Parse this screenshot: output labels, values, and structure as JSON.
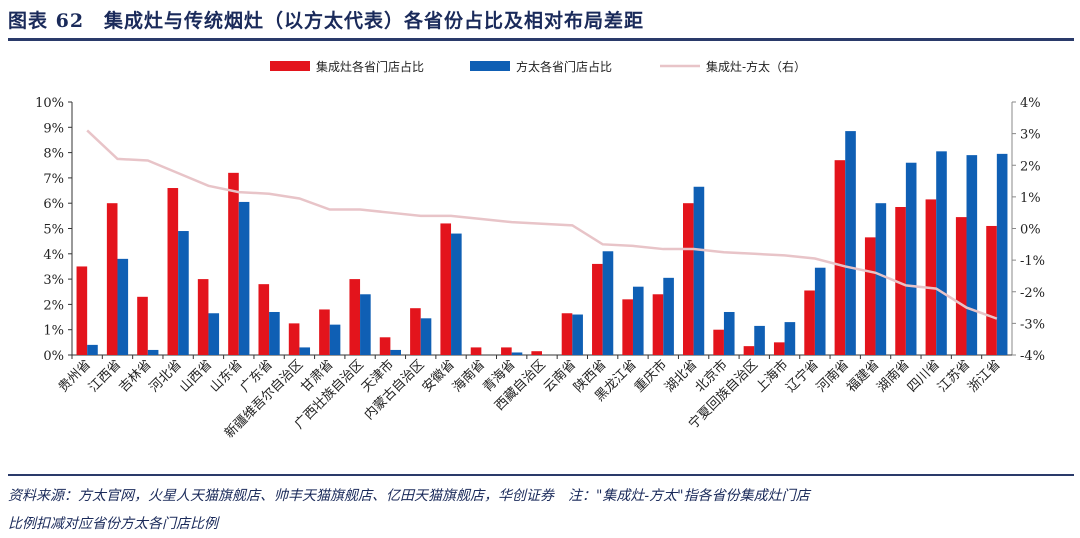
{
  "title": "图表 62　集成灶与传统烟灶（以方太代表）各省份占比及相对布局差距",
  "footer": {
    "source": "资料来源：方太官网，火星人天猫旗舰店、帅丰天猫旗舰店、亿田天猫旗舰店，华创证券　注：\"集成灶-方太\"指各省份集成灶门店",
    "note": "比例扣减对应省份方太各门店比例"
  },
  "chart_data": {
    "type": "bar",
    "categories": [
      "贵州省",
      "江西省",
      "吉林省",
      "河北省",
      "山西省",
      "山东省",
      "广东省",
      "新疆维吾尔自治区",
      "甘肃省",
      "广西壮族自治区",
      "天津市",
      "内蒙古自治区",
      "安徽省",
      "海南省",
      "青海省",
      "西藏自治区",
      "云南省",
      "陕西省",
      "黑龙江省",
      "重庆市",
      "湖北省",
      "北京市",
      "宁夏回族自治区",
      "上海市",
      "辽宁省",
      "河南省",
      "福建省",
      "湖南省",
      "四川省",
      "江苏省",
      "浙江省"
    ],
    "series": [
      {
        "name": "集成灶各省门店占比",
        "type": "bar",
        "axis": "left",
        "color": "#e3141c",
        "values": [
          3.5,
          6.0,
          2.3,
          6.6,
          3.0,
          7.2,
          2.8,
          1.25,
          1.8,
          3.0,
          0.7,
          1.85,
          5.2,
          0.3,
          0.3,
          0.15,
          1.65,
          3.6,
          2.2,
          2.4,
          6.0,
          1.0,
          0.35,
          0.5,
          2.55,
          7.7,
          4.65,
          5.85,
          6.15,
          5.45,
          5.1
        ]
      },
      {
        "name": "方太各省门店占比",
        "type": "bar",
        "axis": "left",
        "color": "#0f5fb4",
        "values": [
          0.4,
          3.8,
          0.2,
          4.9,
          1.65,
          6.05,
          1.7,
          0.3,
          1.2,
          2.4,
          0.2,
          1.45,
          4.8,
          0.0,
          0.1,
          0.0,
          1.6,
          4.1,
          2.7,
          3.05,
          6.65,
          1.7,
          1.15,
          1.3,
          3.45,
          8.85,
          6.0,
          7.6,
          8.05,
          7.9,
          7.95
        ]
      },
      {
        "name": "集成灶-方太（右）",
        "type": "line",
        "axis": "right",
        "color": "#e8c4c8",
        "values": [
          3.1,
          2.2,
          2.15,
          1.75,
          1.35,
          1.15,
          1.1,
          0.95,
          0.6,
          0.6,
          0.5,
          0.4,
          0.4,
          0.3,
          0.2,
          0.15,
          0.1,
          -0.5,
          -0.55,
          -0.65,
          -0.65,
          -0.75,
          -0.8,
          -0.85,
          -0.95,
          -1.2,
          -1.4,
          -1.8,
          -1.9,
          -2.5,
          -2.85
        ]
      }
    ],
    "ylim": [
      0,
      10
    ],
    "yticks": [
      "0%",
      "1%",
      "2%",
      "3%",
      "4%",
      "5%",
      "6%",
      "7%",
      "8%",
      "9%",
      "10%"
    ],
    "y2lim": [
      -4,
      4
    ],
    "y2ticks": [
      "-4%",
      "-3%",
      "-2%",
      "-1%",
      "0%",
      "1%",
      "2%",
      "3%",
      "4%"
    ],
    "legend": "top-center"
  }
}
